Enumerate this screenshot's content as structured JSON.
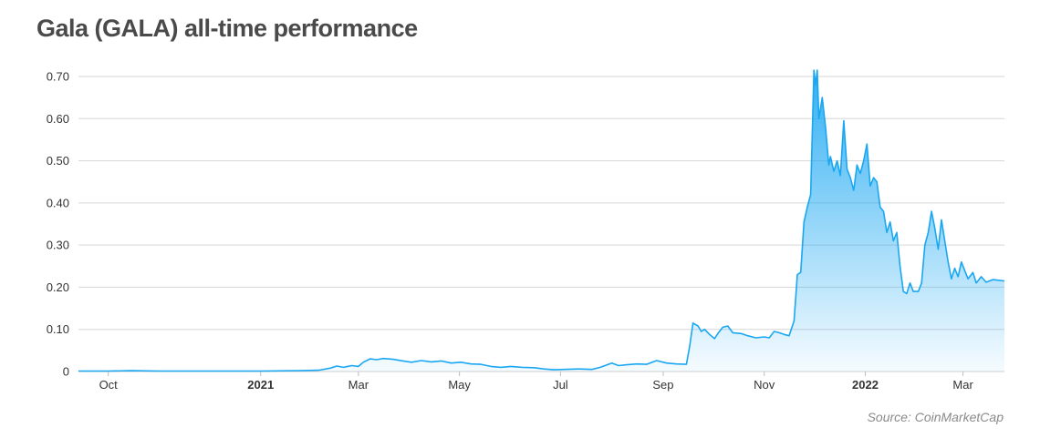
{
  "title": "Gala (GALA) all-time performance",
  "source": "Source: CoinMarketCap",
  "colors": {
    "line": "#1aa7f2",
    "fill_top": "#1aa7f2",
    "grid": "#d6d6d6",
    "text": "#333333"
  },
  "chart_data": {
    "type": "area",
    "title": "Gala (GALA) all-time performance",
    "xlabel": "",
    "ylabel": "",
    "ylim": [
      0,
      0.7
    ],
    "grid": true,
    "y_ticks": [
      "0",
      "0.10",
      "0.20",
      "0.30",
      "0.40",
      "0.50",
      "0.60",
      "0.70"
    ],
    "x_ticks": [
      {
        "label": "Oct",
        "date": "2020-10-01",
        "bold": false
      },
      {
        "label": "2021",
        "date": "2021-01-01",
        "bold": true
      },
      {
        "label": "Mar",
        "date": "2021-03-01",
        "bold": false
      },
      {
        "label": "May",
        "date": "2021-05-01",
        "bold": false
      },
      {
        "label": "Jul",
        "date": "2021-07-01",
        "bold": false
      },
      {
        "label": "Sep",
        "date": "2021-09-01",
        "bold": false
      },
      {
        "label": "Nov",
        "date": "2021-11-01",
        "bold": false
      },
      {
        "label": "2022",
        "date": "2022-01-01",
        "bold": true
      },
      {
        "label": "Mar",
        "date": "2022-03-01",
        "bold": false
      }
    ],
    "x_range": [
      "2020-09-13",
      "2022-03-26"
    ],
    "series": [
      {
        "points": [
          [
            "2020-09-13",
            0.001
          ],
          [
            "2020-10-01",
            0.001
          ],
          [
            "2020-10-15",
            0.002
          ],
          [
            "2020-11-01",
            0.001
          ],
          [
            "2020-12-01",
            0.001
          ],
          [
            "2021-01-01",
            0.001
          ],
          [
            "2021-01-25",
            0.002
          ],
          [
            "2021-02-05",
            0.003
          ],
          [
            "2021-02-12",
            0.008
          ],
          [
            "2021-02-16",
            0.013
          ],
          [
            "2021-02-20",
            0.01
          ],
          [
            "2021-02-25",
            0.014
          ],
          [
            "2021-03-01",
            0.012
          ],
          [
            "2021-03-04",
            0.022
          ],
          [
            "2021-03-08",
            0.03
          ],
          [
            "2021-03-12",
            0.028
          ],
          [
            "2021-03-16",
            0.031
          ],
          [
            "2021-03-22",
            0.029
          ],
          [
            "2021-03-28",
            0.025
          ],
          [
            "2021-04-02",
            0.022
          ],
          [
            "2021-04-08",
            0.026
          ],
          [
            "2021-04-14",
            0.023
          ],
          [
            "2021-04-20",
            0.025
          ],
          [
            "2021-04-26",
            0.02
          ],
          [
            "2021-05-02",
            0.022
          ],
          [
            "2021-05-08",
            0.018
          ],
          [
            "2021-05-14",
            0.017
          ],
          [
            "2021-05-20",
            0.012
          ],
          [
            "2021-05-26",
            0.01
          ],
          [
            "2021-06-01",
            0.012
          ],
          [
            "2021-06-08",
            0.01
          ],
          [
            "2021-06-15",
            0.009
          ],
          [
            "2021-06-21",
            0.006
          ],
          [
            "2021-06-27",
            0.004
          ],
          [
            "2021-07-03",
            0.005
          ],
          [
            "2021-07-12",
            0.006
          ],
          [
            "2021-07-20",
            0.005
          ],
          [
            "2021-07-25",
            0.01
          ],
          [
            "2021-08-01",
            0.02
          ],
          [
            "2021-08-05",
            0.014
          ],
          [
            "2021-08-10",
            0.016
          ],
          [
            "2021-08-16",
            0.018
          ],
          [
            "2021-08-22",
            0.017
          ],
          [
            "2021-08-28",
            0.026
          ],
          [
            "2021-09-03",
            0.02
          ],
          [
            "2021-09-09",
            0.018
          ],
          [
            "2021-09-15",
            0.017
          ],
          [
            "2021-09-17",
            0.06
          ],
          [
            "2021-09-19",
            0.115
          ],
          [
            "2021-09-22",
            0.108
          ],
          [
            "2021-09-24",
            0.095
          ],
          [
            "2021-09-26",
            0.1
          ],
          [
            "2021-09-29",
            0.088
          ],
          [
            "2021-10-02",
            0.078
          ],
          [
            "2021-10-04",
            0.09
          ],
          [
            "2021-10-07",
            0.105
          ],
          [
            "2021-10-10",
            0.108
          ],
          [
            "2021-10-13",
            0.092
          ],
          [
            "2021-10-18",
            0.09
          ],
          [
            "2021-10-22",
            0.085
          ],
          [
            "2021-10-27",
            0.08
          ],
          [
            "2021-11-01",
            0.082
          ],
          [
            "2021-11-04",
            0.08
          ],
          [
            "2021-11-07",
            0.095
          ],
          [
            "2021-11-10",
            0.092
          ],
          [
            "2021-11-13",
            0.088
          ],
          [
            "2021-11-16",
            0.085
          ],
          [
            "2021-11-19",
            0.12
          ],
          [
            "2021-11-21",
            0.23
          ],
          [
            "2021-11-23",
            0.235
          ],
          [
            "2021-11-25",
            0.355
          ],
          [
            "2021-11-27",
            0.39
          ],
          [
            "2021-11-29",
            0.42
          ],
          [
            "2021-12-01",
            0.715
          ],
          [
            "2021-12-02",
            0.68
          ],
          [
            "2021-12-03",
            0.715
          ],
          [
            "2021-12-04",
            0.6
          ],
          [
            "2021-12-06",
            0.65
          ],
          [
            "2021-12-08",
            0.58
          ],
          [
            "2021-12-10",
            0.49
          ],
          [
            "2021-12-11",
            0.51
          ],
          [
            "2021-12-13",
            0.475
          ],
          [
            "2021-12-15",
            0.5
          ],
          [
            "2021-12-17",
            0.465
          ],
          [
            "2021-12-19",
            0.595
          ],
          [
            "2021-12-21",
            0.48
          ],
          [
            "2021-12-23",
            0.46
          ],
          [
            "2021-12-25",
            0.43
          ],
          [
            "2021-12-27",
            0.49
          ],
          [
            "2021-12-29",
            0.47
          ],
          [
            "2021-12-31",
            0.5
          ],
          [
            "2022-01-02",
            0.54
          ],
          [
            "2022-01-04",
            0.44
          ],
          [
            "2022-01-06",
            0.46
          ],
          [
            "2022-01-08",
            0.45
          ],
          [
            "2022-01-10",
            0.39
          ],
          [
            "2022-01-12",
            0.38
          ],
          [
            "2022-01-14",
            0.33
          ],
          [
            "2022-01-16",
            0.355
          ],
          [
            "2022-01-18",
            0.31
          ],
          [
            "2022-01-20",
            0.33
          ],
          [
            "2022-01-22",
            0.25
          ],
          [
            "2022-01-24",
            0.19
          ],
          [
            "2022-01-26",
            0.185
          ],
          [
            "2022-01-28",
            0.21
          ],
          [
            "2022-01-30",
            0.19
          ],
          [
            "2022-02-02",
            0.19
          ],
          [
            "2022-02-04",
            0.21
          ],
          [
            "2022-02-06",
            0.3
          ],
          [
            "2022-02-08",
            0.33
          ],
          [
            "2022-02-10",
            0.38
          ],
          [
            "2022-02-12",
            0.34
          ],
          [
            "2022-02-14",
            0.29
          ],
          [
            "2022-02-16",
            0.36
          ],
          [
            "2022-02-18",
            0.31
          ],
          [
            "2022-02-20",
            0.26
          ],
          [
            "2022-02-22",
            0.22
          ],
          [
            "2022-02-24",
            0.245
          ],
          [
            "2022-02-26",
            0.225
          ],
          [
            "2022-02-28",
            0.26
          ],
          [
            "2022-03-02",
            0.24
          ],
          [
            "2022-03-04",
            0.22
          ],
          [
            "2022-03-07",
            0.235
          ],
          [
            "2022-03-09",
            0.21
          ],
          [
            "2022-03-12",
            0.225
          ],
          [
            "2022-03-15",
            0.212
          ],
          [
            "2022-03-19",
            0.218
          ],
          [
            "2022-03-26",
            0.215
          ]
        ]
      }
    ]
  }
}
